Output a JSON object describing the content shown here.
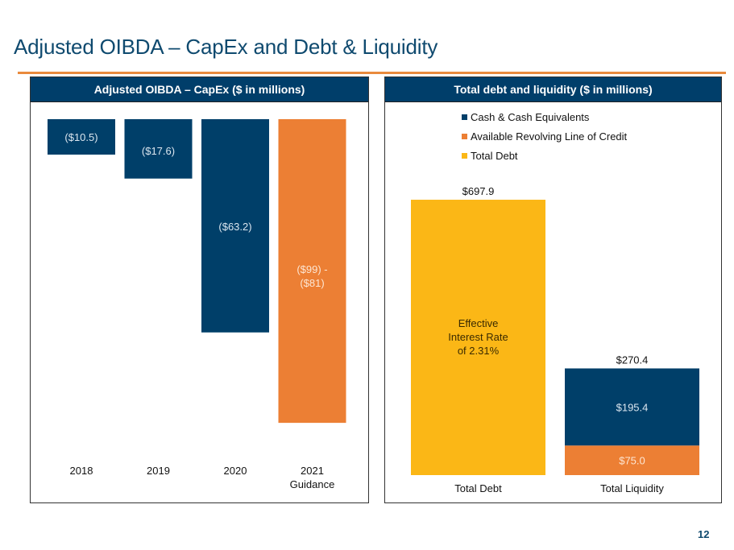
{
  "page": {
    "title": "Adjusted OIBDA – CapEx and Debt & Liquidity",
    "page_number": "12"
  },
  "colors": {
    "navy": "#003f69",
    "orange": "#ec7f34",
    "gold": "#fbb716",
    "rule": "#e98a3d",
    "title": "#0f4a6f"
  },
  "chart_data": [
    {
      "type": "bar",
      "title": "Adjusted OIBDA – CapEx ($ in millions)",
      "xlabel": "",
      "ylabel": "",
      "orientation": "downward (negative values)",
      "categories": [
        "2018",
        "2019",
        "2020",
        "2021 Guidance"
      ],
      "category_lines": [
        [
          "2018"
        ],
        [
          "2019"
        ],
        [
          "2020"
        ],
        [
          "2021",
          "Guidance"
        ]
      ],
      "values": [
        -10.5,
        -17.6,
        -63.2,
        -90
      ],
      "range_note": "2021 Guidance shown as range ($99) - ($81)",
      "data_labels": [
        [
          "($10.5)"
        ],
        [
          "($17.6)"
        ],
        [
          "($63.2)"
        ],
        [
          "($99) -",
          "($81)"
        ]
      ],
      "bar_colors": [
        "#003f69",
        "#003f69",
        "#003f69",
        "#ec7f34"
      ],
      "ylim": [
        -100,
        0
      ],
      "grid": false,
      "legend": "none"
    },
    {
      "type": "bar",
      "stacked": true,
      "title": "Total debt and liquidity ($ in millions)",
      "xlabel": "",
      "ylabel": "",
      "categories": [
        "Total Debt",
        "Total Liquidity"
      ],
      "series": [
        {
          "name": "Cash & Cash Equivalents",
          "color": "#003f69",
          "values": [
            0,
            195.4
          ],
          "labels": [
            "",
            "$195.4"
          ]
        },
        {
          "name": "Available Revolving Line of Credit",
          "color": "#ec7f34",
          "values": [
            0,
            75.0
          ],
          "labels": [
            "",
            "$75.0"
          ]
        },
        {
          "name": "Total Debt",
          "color": "#fbb716",
          "values": [
            697.9,
            0
          ],
          "labels": [
            "",
            ""
          ]
        }
      ],
      "stack_order_bottom_to_top": [
        "Available Revolving Line of Credit",
        "Cash & Cash Equivalents",
        "Total Debt"
      ],
      "totals": [
        697.9,
        270.4
      ],
      "total_labels": [
        "$697.9",
        "$270.4"
      ],
      "annotation": [
        "Effective",
        "Interest Rate",
        "of 2.31%"
      ],
      "ylim": [
        0,
        700
      ],
      "grid": false,
      "legend": "top-left"
    }
  ]
}
